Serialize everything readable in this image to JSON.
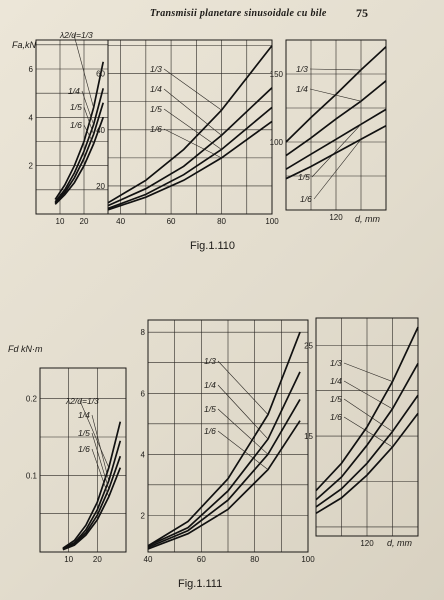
{
  "header": {
    "running_title": "Transmisii planetare sinusoidale cu bile",
    "page_number": "75"
  },
  "figures": [
    {
      "caption": "Fig.1.110"
    },
    {
      "caption": "Fig.1.111"
    }
  ],
  "chart_data": [
    {
      "type": "line",
      "figure": "Fig.1.110",
      "ylabel": "Fa,kN",
      "xlabel": "d, mm",
      "panels": [
        {
          "xlim": [
            0,
            30
          ],
          "ylim": [
            0,
            7.2
          ],
          "xticks": [
            10,
            20
          ],
          "yticks": [
            2,
            4,
            6
          ],
          "series": [
            {
              "name": "λ2/d=1/3",
              "x": [
                8,
                12,
                16,
                20,
                24,
                28
              ],
              "y": [
                0.6,
                1.2,
                2.0,
                3.0,
                4.4,
                6.3
              ]
            },
            {
              "name": "1/4",
              "x": [
                8,
                12,
                16,
                20,
                24,
                28
              ],
              "y": [
                0.5,
                1.0,
                1.7,
                2.6,
                3.7,
                5.2
              ]
            },
            {
              "name": "1/5",
              "x": [
                8,
                12,
                16,
                20,
                24,
                28
              ],
              "y": [
                0.45,
                0.9,
                1.5,
                2.3,
                3.3,
                4.6
              ]
            },
            {
              "name": "1/6",
              "x": [
                8,
                12,
                16,
                20,
                24,
                28
              ],
              "y": [
                0.4,
                0.8,
                1.3,
                2.0,
                2.9,
                4.0
              ]
            }
          ]
        },
        {
          "xlim": [
            35,
            100
          ],
          "ylim": [
            10,
            72
          ],
          "xticks": [
            40,
            60,
            80,
            100
          ],
          "yticks": [
            20,
            40,
            60
          ],
          "series": [
            {
              "name": "1/3",
              "x": [
                35,
                50,
                65,
                80,
                100
              ],
              "y": [
                14,
                22,
                33,
                47,
                70
              ]
            },
            {
              "name": "1/4",
              "x": [
                35,
                50,
                65,
                80,
                100
              ],
              "y": [
                13,
                19,
                27,
                38,
                55
              ]
            },
            {
              "name": "1/5",
              "x": [
                35,
                50,
                65,
                80,
                100
              ],
              "y": [
                12,
                17,
                24,
                33,
                48
              ]
            },
            {
              "name": "1/6",
              "x": [
                35,
                50,
                65,
                80,
                100
              ],
              "y": [
                11.5,
                16,
                22,
                30,
                43
              ]
            }
          ]
        },
        {
          "xlim": [
            100,
            140
          ],
          "ylim": [
            50,
            175
          ],
          "xticks": [
            120
          ],
          "yticks": [
            100,
            150
          ],
          "series": [
            {
              "name": "1/3",
              "x": [
                100,
                110,
                120,
                130,
                140
              ],
              "y": [
                100,
                118,
                135,
                153,
                170
              ]
            },
            {
              "name": "1/4",
              "x": [
                100,
                110,
                120,
                130,
                140
              ],
              "y": [
                90,
                103,
                117,
                130,
                145
              ]
            },
            {
              "name": "1/5",
              "x": [
                100,
                110,
                120,
                130,
                140
              ],
              "y": [
                80,
                91,
                102,
                113,
                124
              ]
            },
            {
              "name": "1/6",
              "x": [
                100,
                110,
                120,
                130,
                140
              ],
              "y": [
                73,
                82,
                92,
                102,
                112
              ]
            }
          ]
        }
      ]
    },
    {
      "type": "line",
      "figure": "Fig.1.111",
      "ylabel": "Fd kN·m",
      "xlabel": "d, mm",
      "panels": [
        {
          "xlim": [
            0,
            30
          ],
          "ylim": [
            0,
            0.24
          ],
          "xticks": [
            10,
            20
          ],
          "yticks": [
            0.1,
            0.2
          ],
          "series": [
            {
              "name": "λ2/d=1/3",
              "x": [
                8,
                12,
                16,
                20,
                24,
                28
              ],
              "y": [
                0.005,
                0.015,
                0.035,
                0.065,
                0.11,
                0.17
              ]
            },
            {
              "name": "1/4",
              "x": [
                8,
                12,
                16,
                20,
                24,
                28
              ],
              "y": [
                0.004,
                0.012,
                0.029,
                0.055,
                0.093,
                0.145
              ]
            },
            {
              "name": "1/5",
              "x": [
                8,
                12,
                16,
                20,
                24,
                28
              ],
              "y": [
                0.0035,
                0.011,
                0.025,
                0.048,
                0.082,
                0.125
              ]
            },
            {
              "name": "1/6",
              "x": [
                8,
                12,
                16,
                20,
                24,
                28
              ],
              "y": [
                0.003,
                0.009,
                0.022,
                0.042,
                0.072,
                0.11
              ]
            }
          ]
        },
        {
          "xlim": [
            40,
            100
          ],
          "ylim": [
            0.8,
            8.4
          ],
          "xticks": [
            40,
            60,
            80,
            100
          ],
          "yticks": [
            2,
            4,
            6,
            8
          ],
          "series": [
            {
              "name": "1/3",
              "x": [
                40,
                55,
                70,
                85,
                97
              ],
              "y": [
                1.0,
                1.8,
                3.2,
                5.3,
                8.0
              ]
            },
            {
              "name": "1/4",
              "x": [
                40,
                55,
                70,
                85,
                97
              ],
              "y": [
                1.0,
                1.6,
                2.8,
                4.5,
                6.7
              ]
            },
            {
              "name": "1/5",
              "x": [
                40,
                55,
                70,
                85,
                97
              ],
              "y": [
                0.95,
                1.5,
                2.5,
                4.0,
                5.8
              ]
            },
            {
              "name": "1/6",
              "x": [
                40,
                55,
                70,
                85,
                97
              ],
              "y": [
                0.9,
                1.4,
                2.2,
                3.5,
                5.1
              ]
            }
          ]
        },
        {
          "xlim": [
            100,
            140
          ],
          "ylim": [
            4,
            28
          ],
          "xticks": [
            120
          ],
          "yticks": [
            15,
            25
          ],
          "series": [
            {
              "name": "1/3",
              "x": [
                100,
                110,
                120,
                130,
                140
              ],
              "y": [
                9,
                12,
                16,
                21,
                27
              ]
            },
            {
              "name": "1/4",
              "x": [
                100,
                110,
                120,
                130,
                140
              ],
              "y": [
                8,
                10.5,
                14,
                18,
                23
              ]
            },
            {
              "name": "1/5",
              "x": [
                100,
                110,
                120,
                130,
                140
              ],
              "y": [
                7.2,
                9.2,
                12,
                15.5,
                19.5
              ]
            },
            {
              "name": "1/6",
              "x": [
                100,
                110,
                120,
                130,
                140
              ],
              "y": [
                6.5,
                8.2,
                10.7,
                13.8,
                17.5
              ]
            }
          ]
        }
      ]
    }
  ]
}
